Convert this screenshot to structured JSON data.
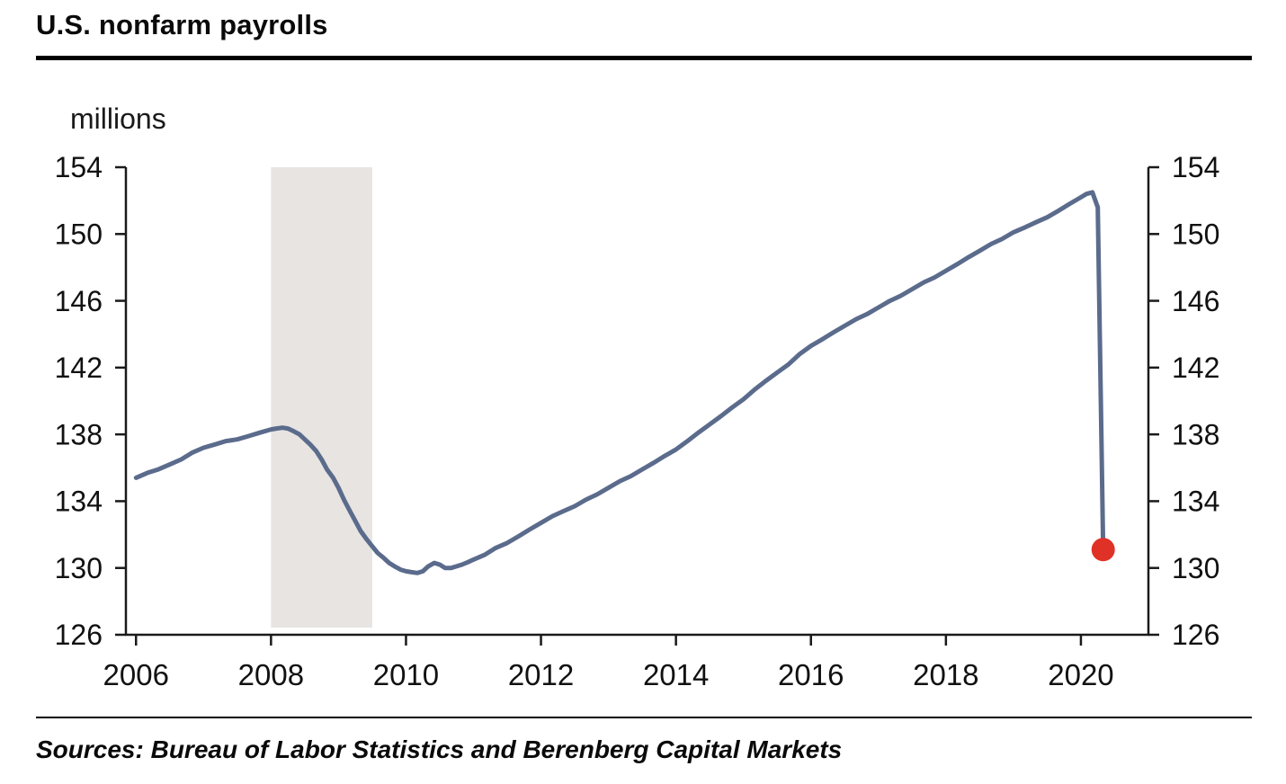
{
  "page": {
    "title": "U.S. nonfarm payrolls",
    "source_note": "Sources: Bureau of Labor Statistics and Berenberg Capital Markets"
  },
  "chart_data": {
    "type": "line",
    "title": "U.S. nonfarm payrolls",
    "unit_label": "millions",
    "xlabel": "",
    "ylabel": "millions",
    "xlim": [
      2005.85,
      2021.0
    ],
    "ylim": [
      126,
      154
    ],
    "xticks": [
      2006,
      2008,
      2010,
      2012,
      2014,
      2016,
      2018,
      2020
    ],
    "yticks": [
      126,
      130,
      134,
      138,
      142,
      146,
      150,
      154
    ],
    "grid": false,
    "legend": "none",
    "axis_color": "#1a1a1a",
    "line_color": "#5b6b8c",
    "line_width": 5,
    "recession_band": {
      "x0": 2008.0,
      "x1": 2009.5,
      "color": "#e7e4e1"
    },
    "end_marker": {
      "x": 2020.33,
      "y": 131.1,
      "color": "#e03127",
      "radius": 13
    },
    "series": [
      {
        "name": "U.S. nonfarm payrolls (millions)",
        "x": [
          2006.0,
          2006.17,
          2006.33,
          2006.5,
          2006.67,
          2006.83,
          2007.0,
          2007.17,
          2007.33,
          2007.5,
          2007.67,
          2007.83,
          2008.0,
          2008.08,
          2008.17,
          2008.25,
          2008.33,
          2008.42,
          2008.5,
          2008.58,
          2008.67,
          2008.75,
          2008.83,
          2008.92,
          2009.0,
          2009.08,
          2009.17,
          2009.25,
          2009.33,
          2009.42,
          2009.5,
          2009.58,
          2009.67,
          2009.75,
          2009.83,
          2009.92,
          2010.0,
          2010.08,
          2010.17,
          2010.25,
          2010.33,
          2010.42,
          2010.5,
          2010.58,
          2010.67,
          2010.75,
          2010.83,
          2010.92,
          2011.0,
          2011.17,
          2011.33,
          2011.5,
          2011.67,
          2011.83,
          2012.0,
          2012.17,
          2012.33,
          2012.5,
          2012.67,
          2012.83,
          2013.0,
          2013.17,
          2013.33,
          2013.5,
          2013.67,
          2013.83,
          2014.0,
          2014.17,
          2014.33,
          2014.5,
          2014.67,
          2014.83,
          2015.0,
          2015.17,
          2015.33,
          2015.5,
          2015.67,
          2015.83,
          2016.0,
          2016.17,
          2016.33,
          2016.5,
          2016.67,
          2016.83,
          2017.0,
          2017.17,
          2017.33,
          2017.5,
          2017.67,
          2017.83,
          2018.0,
          2018.17,
          2018.33,
          2018.5,
          2018.67,
          2018.83,
          2019.0,
          2019.17,
          2019.33,
          2019.5,
          2019.67,
          2019.83,
          2020.0,
          2020.08,
          2020.17,
          2020.25,
          2020.33
        ],
        "y": [
          135.4,
          135.7,
          135.9,
          136.2,
          136.5,
          136.9,
          137.2,
          137.4,
          137.6,
          137.7,
          137.9,
          138.1,
          138.3,
          138.35,
          138.4,
          138.35,
          138.2,
          138.0,
          137.7,
          137.4,
          137.0,
          136.5,
          135.9,
          135.4,
          134.8,
          134.1,
          133.4,
          132.8,
          132.2,
          131.7,
          131.3,
          130.9,
          130.6,
          130.3,
          130.1,
          129.9,
          129.8,
          129.75,
          129.7,
          129.8,
          130.1,
          130.3,
          130.2,
          130.0,
          130.0,
          130.1,
          130.2,
          130.35,
          130.5,
          130.8,
          131.2,
          131.5,
          131.9,
          132.3,
          132.7,
          133.1,
          133.4,
          133.7,
          134.1,
          134.4,
          134.8,
          135.2,
          135.5,
          135.9,
          136.3,
          136.7,
          137.1,
          137.6,
          138.1,
          138.6,
          139.1,
          139.6,
          140.1,
          140.7,
          141.2,
          141.7,
          142.2,
          142.8,
          143.3,
          143.7,
          144.1,
          144.5,
          144.9,
          145.2,
          145.6,
          146.0,
          146.3,
          146.7,
          147.1,
          147.4,
          147.8,
          148.2,
          148.6,
          149.0,
          149.4,
          149.7,
          150.1,
          150.4,
          150.7,
          151.0,
          151.4,
          151.8,
          152.2,
          152.4,
          152.5,
          151.6,
          131.1
        ]
      }
    ]
  }
}
